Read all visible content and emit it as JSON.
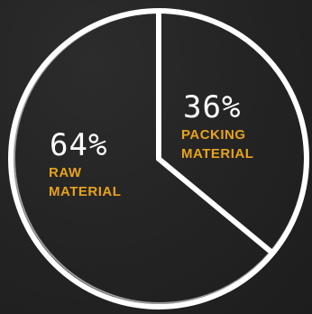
{
  "chart_data": {
    "type": "pie",
    "categories": [
      "RAW MATERIAL",
      "PACKING MATERIAL"
    ],
    "values": [
      64,
      36
    ],
    "value_labels": [
      "64%",
      "36%"
    ],
    "label_lines": [
      [
        "RAW",
        "MATERIAL"
      ],
      [
        "PACKING",
        "MATERIAL"
      ]
    ],
    "title": "",
    "colors": {
      "background": "#232323",
      "outline": "#ffffff",
      "label": "#e7a31c",
      "value": "#ffffff"
    }
  }
}
